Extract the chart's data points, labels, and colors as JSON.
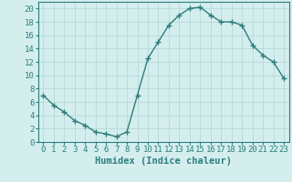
{
  "x": [
    0,
    1,
    2,
    3,
    4,
    5,
    6,
    7,
    8,
    9,
    10,
    11,
    12,
    13,
    14,
    15,
    16,
    17,
    18,
    19,
    20,
    21,
    22,
    23
  ],
  "y": [
    7,
    5.5,
    4.5,
    3.2,
    2.5,
    1.5,
    1.2,
    0.8,
    1.5,
    7,
    12.5,
    15,
    17.5,
    19,
    20,
    20.2,
    19,
    18,
    18,
    17.5,
    14.5,
    13,
    12,
    9.5
  ],
  "line_color": "#2e7d7d",
  "marker": "+",
  "marker_size": 4,
  "marker_color": "#2e7d7d",
  "background_color": "#d4eeee",
  "grid_color": "#b8d8d8",
  "tick_color": "#2e7d7d",
  "spine_color": "#2e7d7d",
  "xlabel": "Humidex (Indice chaleur)",
  "xlim": [
    -0.5,
    23.5
  ],
  "ylim": [
    0,
    21
  ],
  "yticks": [
    0,
    2,
    4,
    6,
    8,
    10,
    12,
    14,
    16,
    18,
    20
  ],
  "xticks": [
    0,
    1,
    2,
    3,
    4,
    5,
    6,
    7,
    8,
    9,
    10,
    11,
    12,
    13,
    14,
    15,
    16,
    17,
    18,
    19,
    20,
    21,
    22,
    23
  ],
  "font_size": 6.5,
  "label_font_size": 7.5,
  "linewidth": 1.0
}
